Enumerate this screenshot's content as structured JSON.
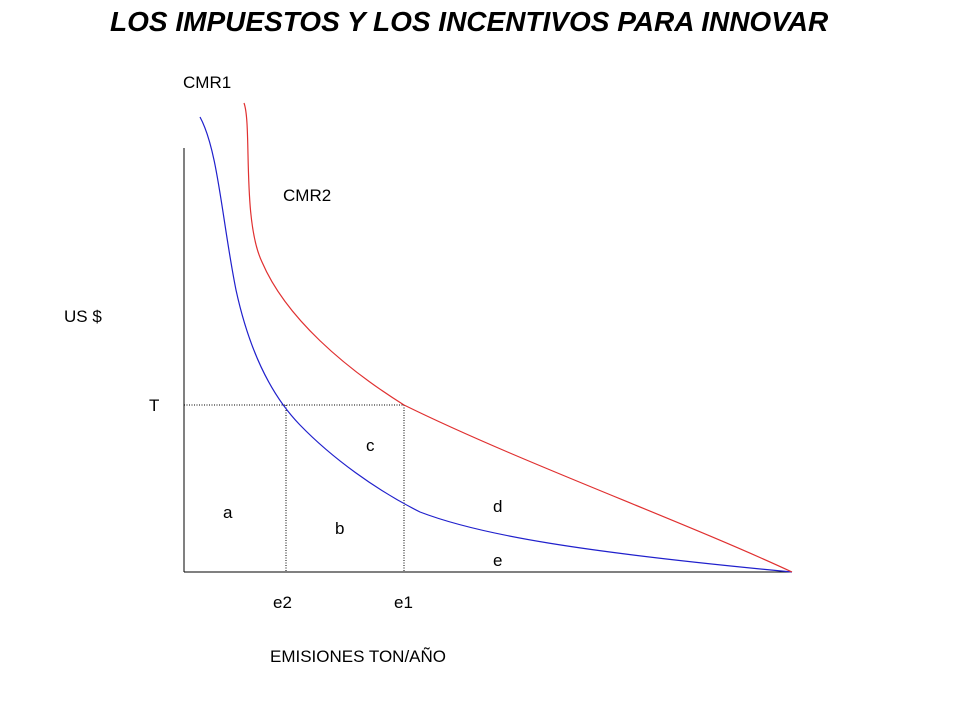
{
  "title": "LOS IMPUESTOS Y LOS INCENTIVOS PARA INNOVAR",
  "axes": {
    "ylabel": "US $",
    "xlabel": "EMISIONES TON/AÑO"
  },
  "curves": [
    {
      "name": "CMR1",
      "color": "#2020cc"
    },
    {
      "name": "CMR2",
      "color": "#e03030"
    }
  ],
  "levels": {
    "tax": "T"
  },
  "points": {
    "e2": "e2",
    "e1": "e1"
  },
  "areas": {
    "a": "a",
    "b": "b",
    "c": "c",
    "d": "d",
    "e": "e"
  }
}
